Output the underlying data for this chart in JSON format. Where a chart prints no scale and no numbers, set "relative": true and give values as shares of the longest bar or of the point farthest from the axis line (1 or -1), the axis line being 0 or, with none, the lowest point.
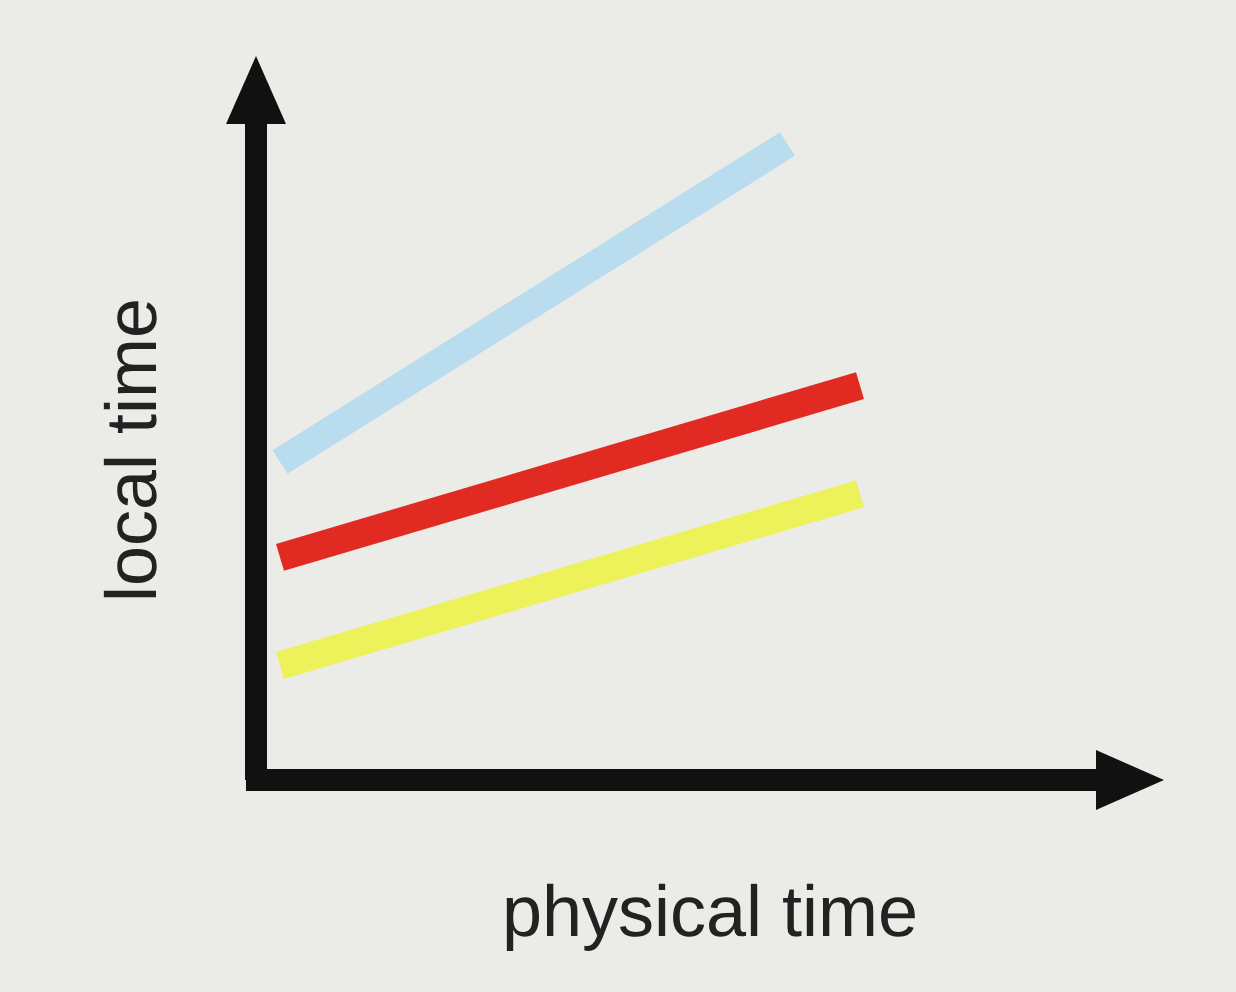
{
  "chart_data": {
    "type": "line",
    "relative": true,
    "xlabel": "physical time",
    "ylabel": "local time",
    "categories": [
      null,
      null,
      null,
      null,
      null,
      null,
      null,
      null,
      null
    ],
    "marker": "none",
    "line_style": "solid",
    "series": [
      {
        "color": "#b9dcef",
        "values": [
          0.5,
          null,
          null,
          null,
          null,
          null,
          null,
          1,
          null
        ]
      },
      {
        "color": "#e02a22",
        "values": [
          0.35,
          null,
          null,
          null,
          null,
          null,
          null,
          null,
          0.62
        ]
      },
      {
        "color": "#eef25a",
        "values": [
          0.18,
          null,
          null,
          null,
          null,
          null,
          null,
          null,
          0.45
        ]
      }
    ]
  }
}
